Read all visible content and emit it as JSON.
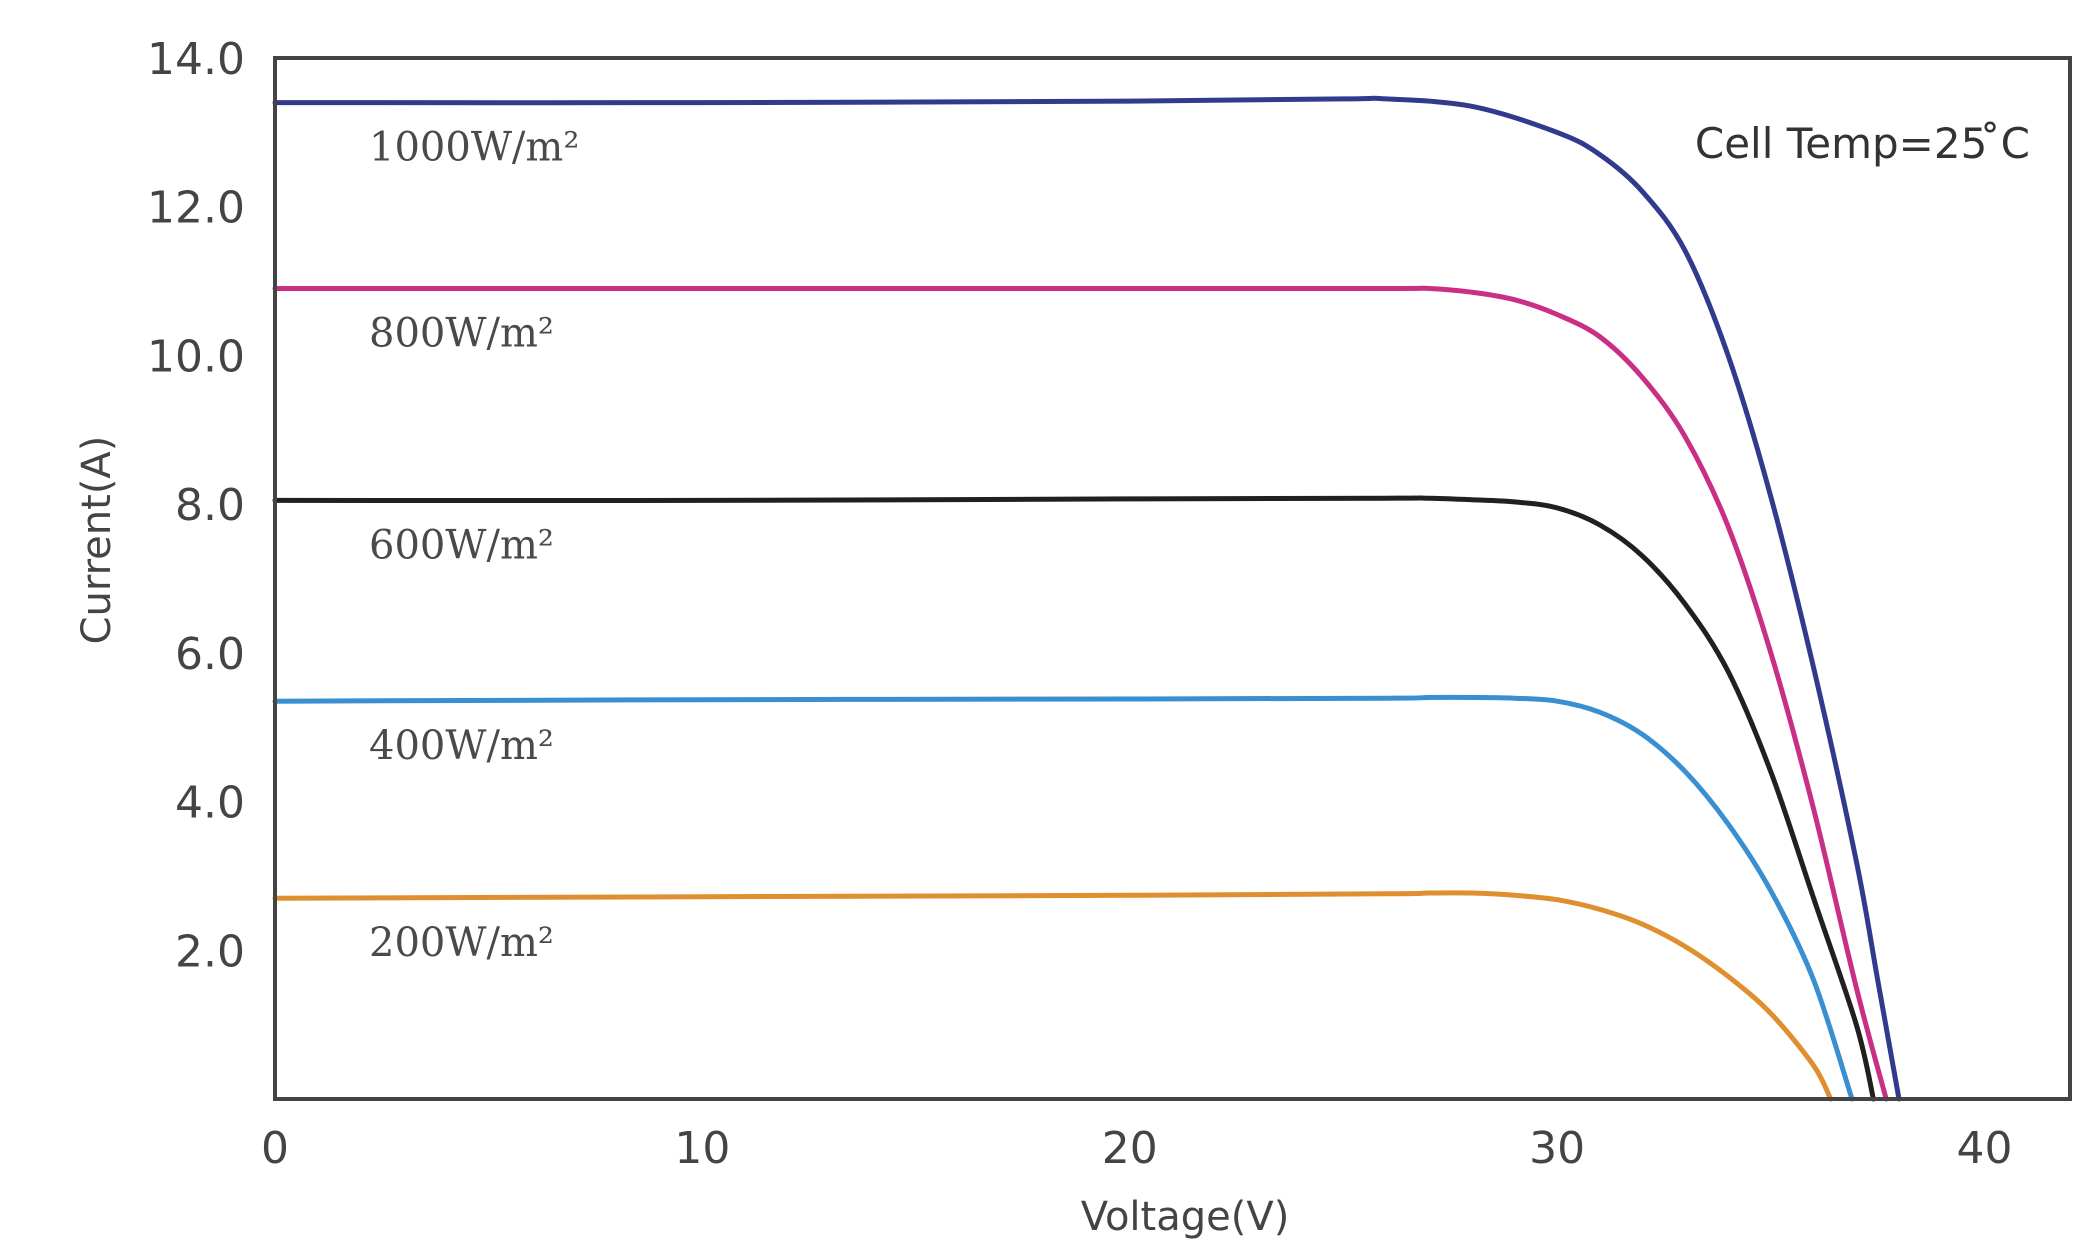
{
  "chart_data": {
    "type": "line",
    "title": "",
    "xlabel": "Voltage(V)",
    "ylabel": "Current(A)",
    "xlim": [
      0,
      42
    ],
    "ylim": [
      0,
      14
    ],
    "grid": false,
    "x_ticks": [
      {
        "value": 0,
        "label": "0"
      },
      {
        "value": 10,
        "label": "10"
      },
      {
        "value": 20,
        "label": "20"
      },
      {
        "value": 30,
        "label": "30"
      },
      {
        "value": 40,
        "label": "40"
      }
    ],
    "y_ticks": [
      {
        "value": 14,
        "label": "14.0"
      },
      {
        "value": 12,
        "label": "12.0"
      },
      {
        "value": 10,
        "label": "10.0"
      },
      {
        "value": 8,
        "label": "8.0"
      },
      {
        "value": 6,
        "label": "6.0"
      },
      {
        "value": 4,
        "label": "4.0"
      },
      {
        "value": 2,
        "label": "2.0"
      }
    ],
    "annotation": "Cell Temp=25 ̊C",
    "series": [
      {
        "label": "1000W/m²",
        "color": "#323a8e",
        "x": [
          0,
          10,
          20,
          25,
          26,
          28,
          30,
          31,
          32,
          33,
          34,
          35,
          36,
          37,
          37.5,
          38
        ],
        "y": [
          13.4,
          13.4,
          13.42,
          13.45,
          13.45,
          13.35,
          13.0,
          12.7,
          12.2,
          11.4,
          10.0,
          8.1,
          5.8,
          3.2,
          1.6,
          0
        ]
      },
      {
        "label": "800W/m²",
        "color": "#c92f85",
        "x": [
          0,
          10,
          20,
          26,
          27,
          28,
          29,
          30,
          31,
          32,
          33,
          34,
          35,
          36,
          37,
          37.7
        ],
        "y": [
          10.9,
          10.9,
          10.9,
          10.9,
          10.9,
          10.85,
          10.75,
          10.55,
          10.25,
          9.7,
          8.9,
          7.7,
          6.0,
          3.9,
          1.5,
          0
        ]
      },
      {
        "label": "600W/m²",
        "color": "#231f20",
        "x": [
          0,
          10,
          20,
          26,
          27,
          28,
          29,
          30,
          31,
          32,
          33,
          34,
          35,
          36,
          37,
          37.4
        ],
        "y": [
          8.05,
          8.05,
          8.07,
          8.08,
          8.08,
          8.06,
          8.03,
          7.95,
          7.72,
          7.3,
          6.65,
          5.75,
          4.4,
          2.7,
          1.0,
          0
        ]
      },
      {
        "label": "400W/m²",
        "color": "#3a8fd0",
        "x": [
          0,
          10,
          20,
          26,
          27,
          28,
          29,
          30,
          31,
          32,
          33,
          34,
          35,
          36,
          36.9
        ],
        "y": [
          5.35,
          5.37,
          5.38,
          5.39,
          5.4,
          5.4,
          5.39,
          5.35,
          5.2,
          4.9,
          4.4,
          3.7,
          2.8,
          1.6,
          0
        ]
      },
      {
        "label": "200W/m²",
        "color": "#df8e30",
        "x": [
          0,
          10,
          20,
          26,
          27,
          28,
          29,
          30,
          31,
          32,
          33,
          34,
          35,
          36,
          36.4
        ],
        "y": [
          2.7,
          2.72,
          2.74,
          2.76,
          2.77,
          2.77,
          2.74,
          2.68,
          2.55,
          2.35,
          2.05,
          1.65,
          1.15,
          0.45,
          0
        ]
      }
    ]
  }
}
